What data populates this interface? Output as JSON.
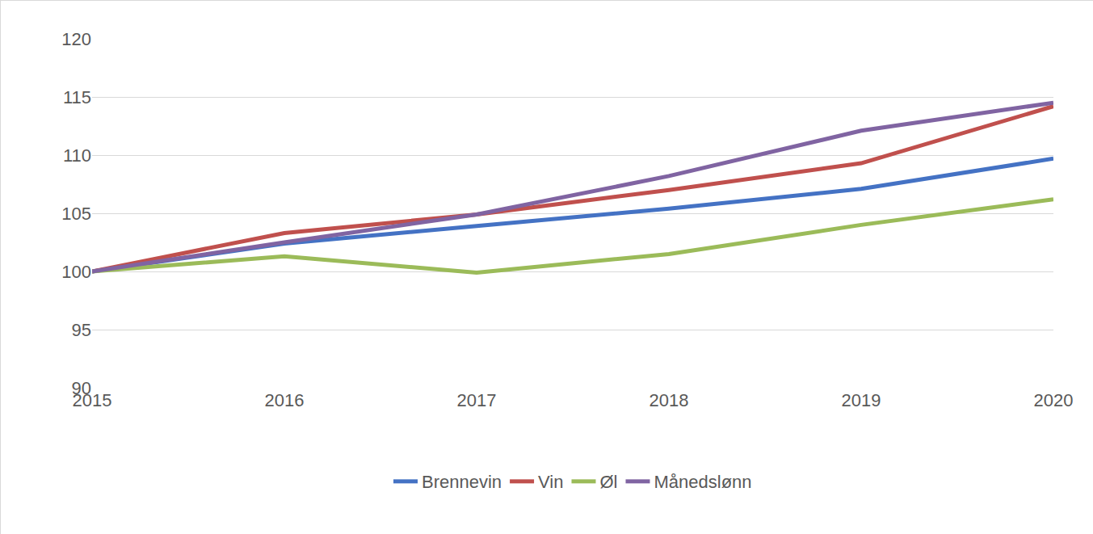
{
  "chart_data": {
    "type": "line",
    "categories": [
      "2015",
      "2016",
      "2017",
      "2018",
      "2019",
      "2020"
    ],
    "series": [
      {
        "name": "Brennevin",
        "color": "#4472c4",
        "values": [
          100,
          102.4,
          103.9,
          105.4,
          107.1,
          109.7
        ]
      },
      {
        "name": "Vin",
        "color": "#c0504d",
        "values": [
          100,
          103.3,
          104.9,
          107.0,
          109.3,
          114.2
        ]
      },
      {
        "name": "Øl",
        "color": "#9bbb59",
        "values": [
          100,
          101.3,
          99.9,
          101.5,
          104.0,
          106.2
        ]
      },
      {
        "name": "Månedslønn",
        "color": "#8064a2",
        "values": [
          100,
          102.5,
          104.9,
          108.2,
          112.1,
          114.5
        ]
      }
    ],
    "ylim": [
      90,
      120
    ],
    "yticks": [
      90,
      95,
      100,
      105,
      110,
      115,
      120
    ],
    "grid": true,
    "legend": "bottom"
  }
}
